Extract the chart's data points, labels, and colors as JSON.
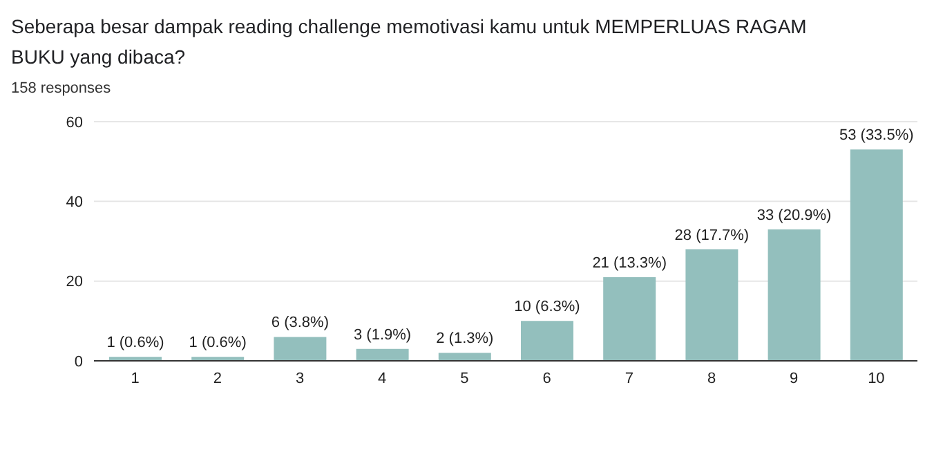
{
  "chart_data": {
    "type": "bar",
    "title": "Seberapa besar dampak reading challenge memotivasi kamu untuk MEMPERLUAS RAGAM BUKU yang dibaca?",
    "subtitle": "158 responses",
    "categories": [
      "1",
      "2",
      "3",
      "4",
      "5",
      "6",
      "7",
      "8",
      "9",
      "10"
    ],
    "values": [
      1,
      1,
      6,
      3,
      2,
      10,
      21,
      28,
      33,
      53
    ],
    "value_labels": [
      "1 (0.6%)",
      "1 (0.6%)",
      "6 (3.8%)",
      "3 (1.9%)",
      "2 (1.3%)",
      "10 (6.3%)",
      "21 (13.3%)",
      "28 (17.7%)",
      "33 (20.9%)",
      "53 (33.5%)"
    ],
    "color": "#93bfbd",
    "ylim": [
      0,
      60
    ],
    "yticks": [
      0,
      20,
      40,
      60
    ],
    "grid": "y"
  }
}
